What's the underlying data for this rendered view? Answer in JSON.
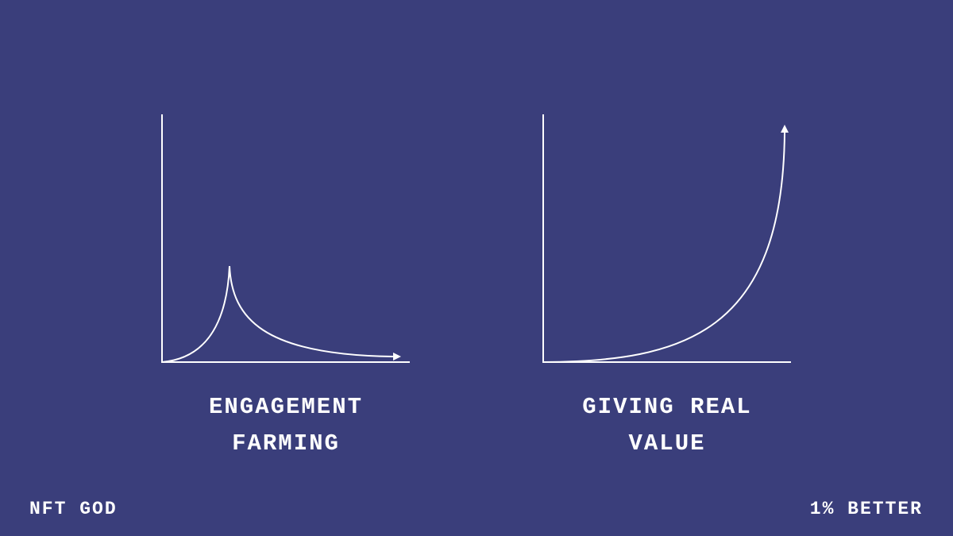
{
  "panels": [
    {
      "caption_lines": [
        "ENGAGEMENT",
        "FARMING"
      ]
    },
    {
      "caption_lines": [
        "GIVING REAL",
        "VALUE"
      ]
    }
  ],
  "footer": {
    "left": "NFT GOD",
    "right": "1% BETTER"
  }
}
